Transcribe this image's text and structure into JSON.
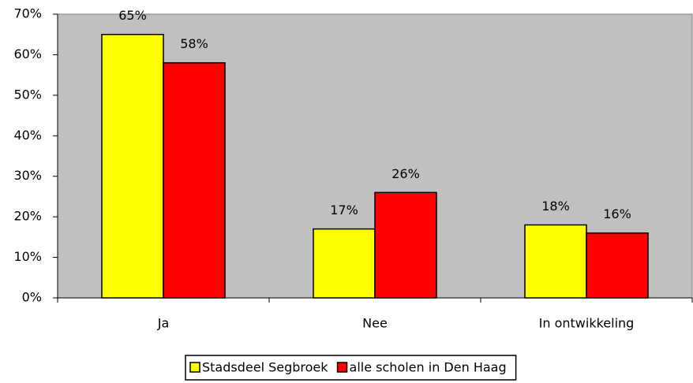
{
  "chart_data": {
    "type": "bar",
    "categories": [
      "Ja",
      "Nee",
      "In ontwikkeling"
    ],
    "series": [
      {
        "name": "Stadsdeel Segbroek",
        "color": "#ffff00",
        "values": [
          65,
          17,
          18
        ],
        "value_labels": [
          "65%",
          "17%",
          "18%"
        ]
      },
      {
        "name": "alle scholen in Den Haag",
        "color": "#ff0000",
        "values": [
          58,
          26,
          16
        ],
        "value_labels": [
          "58%",
          "26%",
          "16%"
        ]
      }
    ],
    "ylim": [
      0,
      70
    ],
    "yticks": [
      {
        "value": 0,
        "label": "0%"
      },
      {
        "value": 10,
        "label": "10%"
      },
      {
        "value": 20,
        "label": "20%"
      },
      {
        "value": 30,
        "label": "30%"
      },
      {
        "value": 40,
        "label": "40%"
      },
      {
        "value": 50,
        "label": "50%"
      },
      {
        "value": 60,
        "label": "60%"
      },
      {
        "value": 70,
        "label": "70%"
      }
    ],
    "plot_background": "#c0c0c0",
    "legend": "bottom"
  }
}
